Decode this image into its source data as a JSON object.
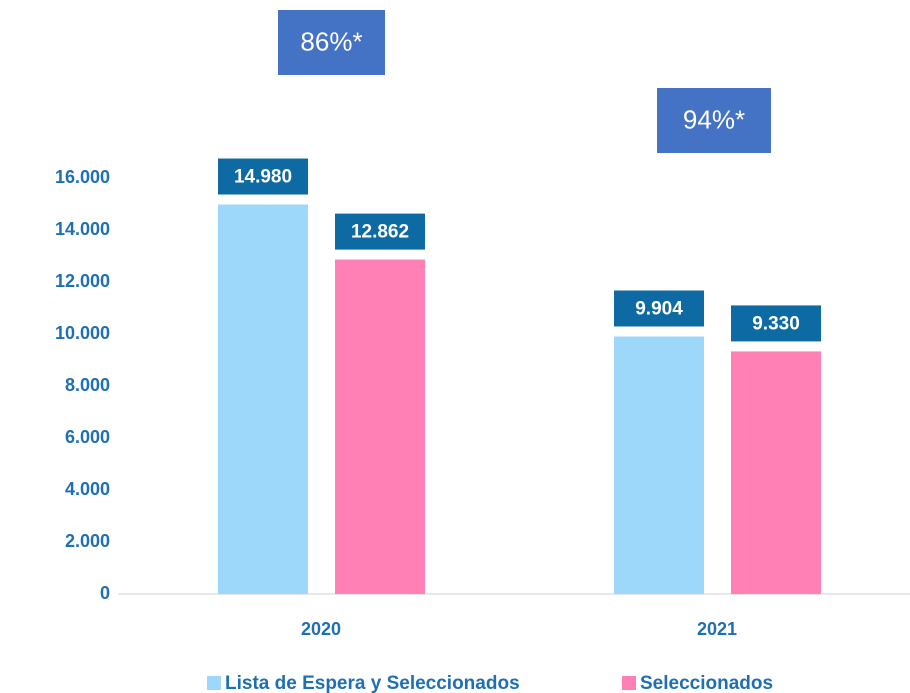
{
  "chart_data": {
    "type": "bar",
    "categories": [
      "2020",
      "2021"
    ],
    "series": [
      {
        "name": "Lista de Espera y Seleccionados",
        "color": "#9dd8fb",
        "values": [
          14980,
          9904
        ],
        "value_labels": [
          "14.980",
          "9.904"
        ]
      },
      {
        "name": "Seleccionados",
        "color": "#ff80b5",
        "values": [
          12862,
          9330
        ],
        "value_labels": [
          "12.862",
          "9.330"
        ]
      }
    ],
    "annotations": [
      "86%*",
      "94%*"
    ],
    "ylim": [
      0,
      16000
    ],
    "yticks": [
      {
        "value": 0,
        "label": "0"
      },
      {
        "value": 2000,
        "label": "2.000"
      },
      {
        "value": 4000,
        "label": "4.000"
      },
      {
        "value": 6000,
        "label": "6.000"
      },
      {
        "value": 8000,
        "label": "8.000"
      },
      {
        "value": 10000,
        "label": "10.000"
      },
      {
        "value": 12000,
        "label": "12.000"
      },
      {
        "value": 14000,
        "label": "14.000"
      },
      {
        "value": 16000,
        "label": "16.000"
      }
    ],
    "grid": false,
    "label_box_color": "#0e6aa3",
    "annotation_color": "#4472c4"
  }
}
